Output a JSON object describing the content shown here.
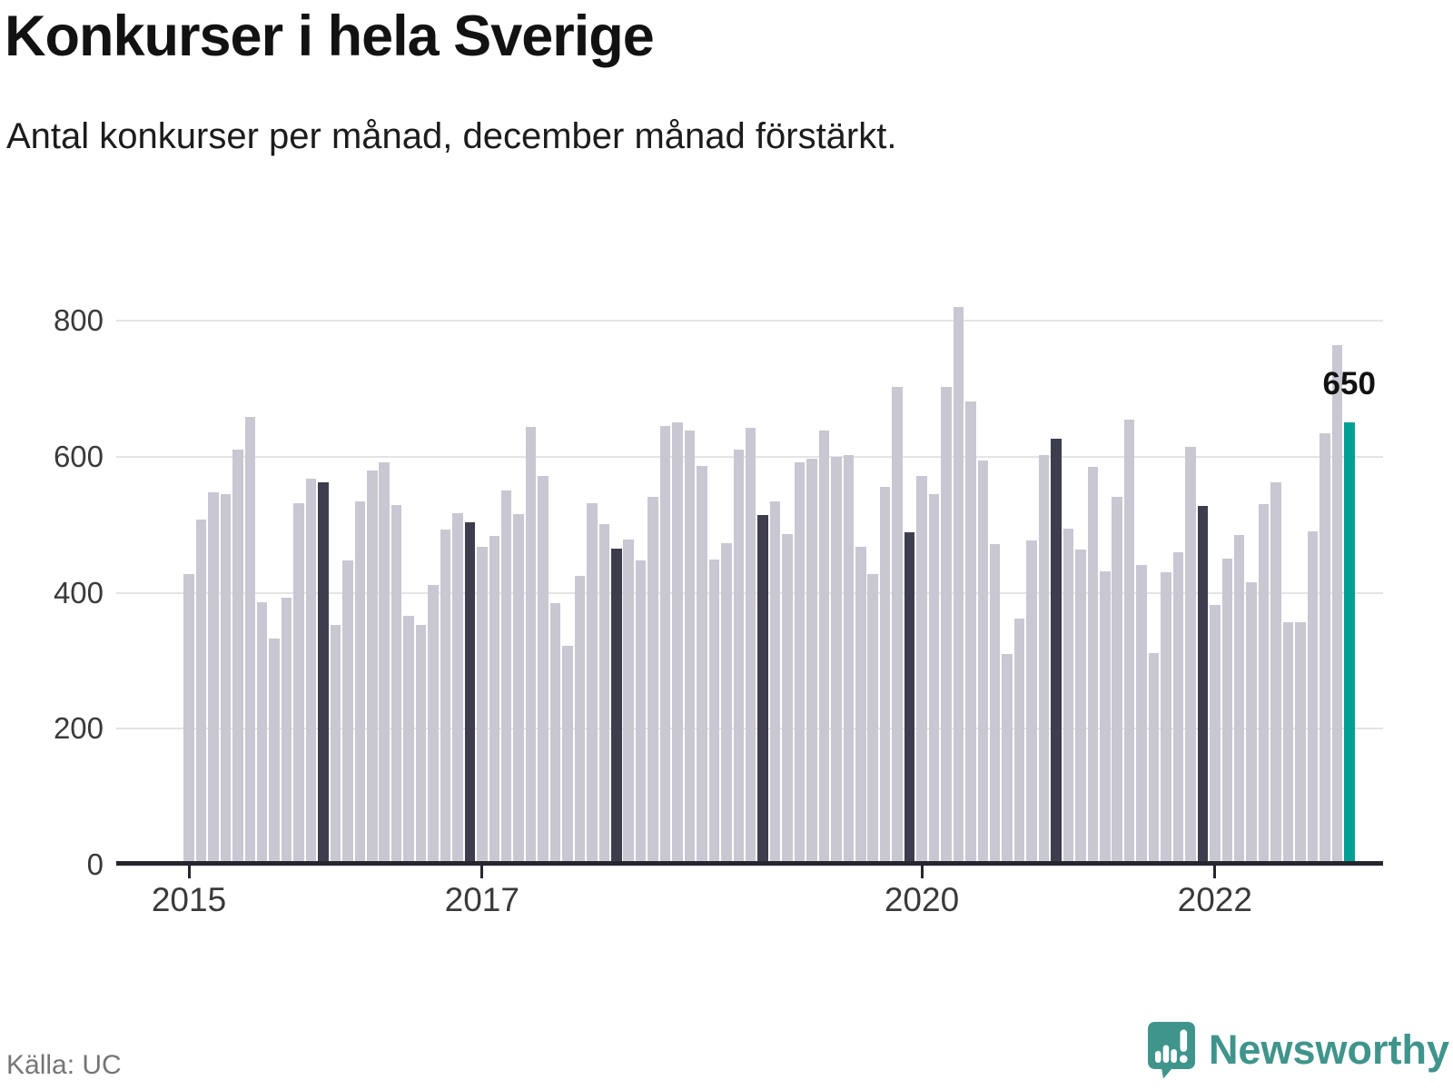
{
  "header": {
    "title": "Konkurser i hela Sverige",
    "subtitle": "Antal konkurser per månad, december månad förstärkt."
  },
  "footer": {
    "source": "Källa: UC",
    "brand": "Newsworthy",
    "brand_icon": "newsworthy-speech-bubble-chart-icon"
  },
  "annotation": {
    "label": "650",
    "value": 650
  },
  "colors": {
    "bar": "#c9c7d1",
    "december_bar": "#3e3d4d",
    "highlight_bar": "#00a094",
    "axis": "#26262f",
    "grid": "#e4e4e7",
    "title_text": "#121212",
    "tick_text": "#3a3a3a",
    "source_text": "#757575",
    "brand_teal": "#3f948b"
  },
  "chart_data": {
    "type": "bar",
    "title": "Konkurser i hela Sverige",
    "xlabel": "",
    "ylabel": "Antal konkurser per månad",
    "ylim": [
      0,
      800
    ],
    "yticks": [
      0,
      200,
      400,
      600,
      800
    ],
    "xticks": [
      2015,
      2017,
      2020,
      2022
    ],
    "grid": true,
    "legend": false,
    "highlight_rule": "december-months-darkened",
    "last_bar": {
      "month": "2022-12",
      "value": 650,
      "label": "650",
      "color": "teal"
    },
    "series_by_year": [
      {
        "year": 2015,
        "values": [
          428,
          508,
          548,
          545,
          611,
          658,
          386,
          333,
          392,
          532,
          567,
          562
        ]
      },
      {
        "year": 2016,
        "values": [
          352,
          448,
          534,
          580,
          592,
          529,
          366,
          353,
          412,
          493,
          517,
          504
        ]
      },
      {
        "year": 2017,
        "values": [
          468,
          484,
          550,
          516,
          644,
          572,
          385,
          322,
          425,
          532,
          501,
          465
        ]
      },
      {
        "year": 2018,
        "values": [
          478,
          447,
          541,
          645,
          651,
          638,
          586,
          449,
          473,
          610,
          642,
          514
        ]
      },
      {
        "year": 2019,
        "values": [
          534,
          486,
          592,
          597,
          638,
          600,
          603,
          468,
          428,
          555,
          703,
          489
        ]
      },
      {
        "year": 2020,
        "values": [
          572,
          545,
          702,
          820,
          681,
          594,
          472,
          310,
          362,
          477,
          602,
          627
        ]
      },
      {
        "year": 2021,
        "values": [
          494,
          463,
          585,
          432,
          541,
          654,
          441,
          311,
          430,
          460,
          614,
          527
        ]
      },
      {
        "year": 2022,
        "values": [
          382,
          450,
          485,
          416,
          530,
          562,
          357,
          357,
          490,
          634,
          764,
          650
        ]
      }
    ]
  }
}
